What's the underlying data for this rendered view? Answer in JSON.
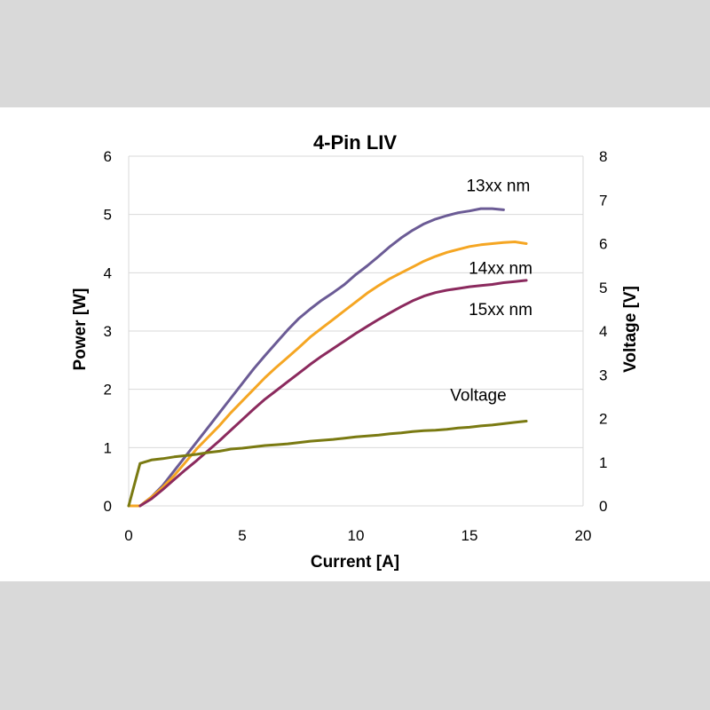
{
  "chart_data": {
    "type": "line",
    "title": "4-Pin LIV",
    "xlabel": "Current [A]",
    "ylabel": "Power [W]",
    "y2label": "Voltage [V]",
    "xlim": [
      0,
      20
    ],
    "ylim": [
      0,
      6
    ],
    "y2lim": [
      0,
      8
    ],
    "xticks": [
      "0",
      "5",
      "10",
      "15",
      "20"
    ],
    "yticks": [
      "0",
      "1",
      "2",
      "3",
      "4",
      "5",
      "6"
    ],
    "y2ticks": [
      "0",
      "1",
      "2",
      "3",
      "4",
      "5",
      "6",
      "7",
      "8"
    ],
    "grid": "horizontal",
    "series": [
      {
        "name": "13xx nm",
        "axis": "left",
        "color": "#6b5b95",
        "x": [
          0,
          0.5,
          1,
          1.5,
          2,
          2.5,
          3,
          3.5,
          4,
          4.5,
          5,
          5.5,
          6,
          6.5,
          7,
          7.5,
          8,
          8.5,
          9,
          9.5,
          10,
          10.5,
          11,
          11.5,
          12,
          12.5,
          13,
          13.5,
          14,
          14.5,
          15,
          15.5,
          16,
          16.5
        ],
        "values": [
          0,
          0,
          0.15,
          0.35,
          0.6,
          0.85,
          1.1,
          1.35,
          1.6,
          1.85,
          2.1,
          2.35,
          2.58,
          2.8,
          3.02,
          3.22,
          3.38,
          3.53,
          3.66,
          3.8,
          3.97,
          4.12,
          4.28,
          4.45,
          4.6,
          4.73,
          4.84,
          4.92,
          4.98,
          5.03,
          5.06,
          5.1,
          5.1,
          5.08
        ]
      },
      {
        "name": "14xx nm",
        "axis": "left",
        "color": "#f5a623",
        "x": [
          0,
          0.5,
          1,
          1.5,
          2,
          2.5,
          3,
          3.5,
          4,
          4.5,
          5,
          5.5,
          6,
          6.5,
          7,
          7.5,
          8,
          8.5,
          9,
          9.5,
          10,
          10.5,
          11,
          11.5,
          12,
          12.5,
          13,
          13.5,
          14,
          14.5,
          15,
          15.5,
          16,
          16.5,
          17,
          17.5
        ],
        "values": [
          0,
          0,
          0.15,
          0.32,
          0.52,
          0.75,
          0.98,
          1.18,
          1.38,
          1.6,
          1.8,
          2.0,
          2.2,
          2.38,
          2.55,
          2.72,
          2.9,
          3.05,
          3.2,
          3.35,
          3.5,
          3.65,
          3.78,
          3.9,
          4.0,
          4.1,
          4.2,
          4.28,
          4.35,
          4.4,
          4.45,
          4.48,
          4.5,
          4.52,
          4.53,
          4.5
        ]
      },
      {
        "name": "15xx nm",
        "axis": "left",
        "color": "#8b2a5e",
        "x": [
          0.5,
          1,
          1.5,
          2,
          2.5,
          3,
          3.5,
          4,
          4.5,
          5,
          5.5,
          6,
          6.5,
          7,
          7.5,
          8,
          8.5,
          9,
          9.5,
          10,
          10.5,
          11,
          11.5,
          12,
          12.5,
          13,
          13.5,
          14,
          14.5,
          15,
          15.5,
          16,
          16.5,
          17,
          17.5
        ],
        "values": [
          0,
          0.12,
          0.28,
          0.45,
          0.62,
          0.78,
          0.95,
          1.12,
          1.3,
          1.48,
          1.66,
          1.83,
          1.98,
          2.13,
          2.28,
          2.43,
          2.57,
          2.7,
          2.83,
          2.96,
          3.08,
          3.2,
          3.31,
          3.42,
          3.52,
          3.6,
          3.66,
          3.7,
          3.73,
          3.76,
          3.78,
          3.8,
          3.83,
          3.85,
          3.87
        ]
      },
      {
        "name": "Voltage",
        "axis": "right",
        "color": "#7a7a12",
        "x": [
          0,
          0.5,
          1,
          1.5,
          2,
          2.5,
          3,
          3.5,
          4,
          4.5,
          5,
          5.5,
          6,
          6.5,
          7,
          7.5,
          8,
          8.5,
          9,
          9.5,
          10,
          10.5,
          11,
          11.5,
          12,
          12.5,
          13,
          13.5,
          14,
          14.5,
          15,
          15.5,
          16,
          16.5,
          17,
          17.5
        ],
        "values": [
          0,
          0.97,
          1.05,
          1.08,
          1.12,
          1.15,
          1.18,
          1.22,
          1.25,
          1.3,
          1.32,
          1.35,
          1.38,
          1.4,
          1.42,
          1.45,
          1.48,
          1.5,
          1.52,
          1.55,
          1.58,
          1.6,
          1.62,
          1.65,
          1.67,
          1.7,
          1.72,
          1.73,
          1.75,
          1.78,
          1.8,
          1.83,
          1.85,
          1.88,
          1.91,
          1.94
        ]
      }
    ]
  }
}
